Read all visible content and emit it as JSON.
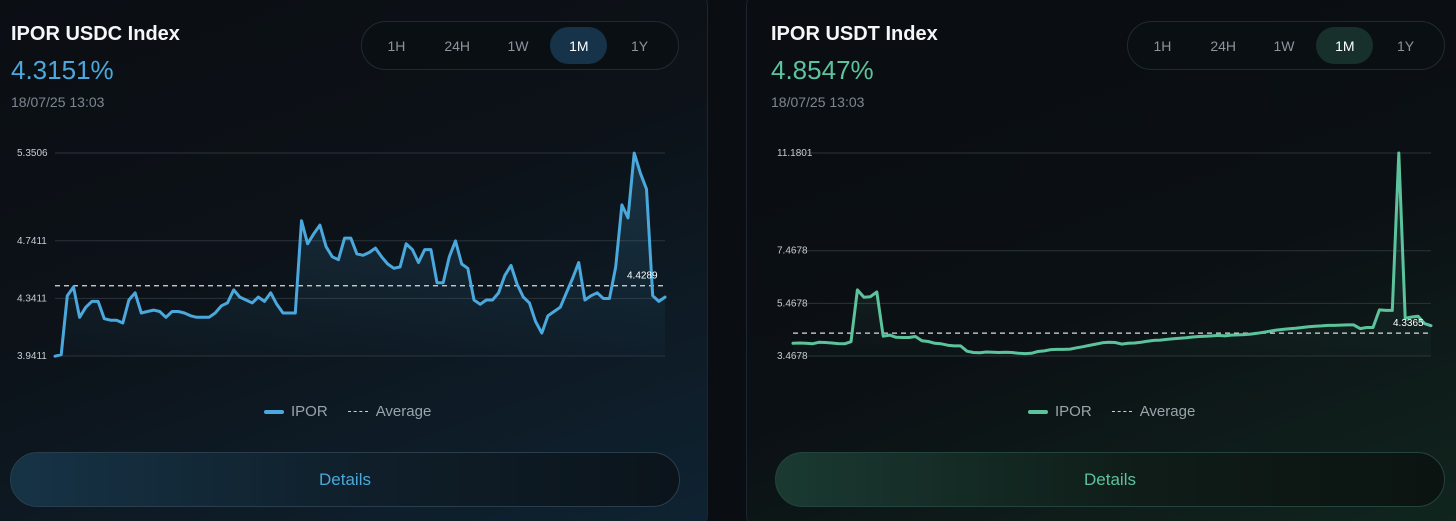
{
  "legend": {
    "series_label": "IPOR",
    "average_label": "Average"
  },
  "details_label": "Details",
  "time_ranges": [
    "1H",
    "24H",
    "1W",
    "1M",
    "1Y"
  ],
  "selected_range": "1M",
  "cards": [
    {
      "title": "IPOR USDC Index",
      "value": "4.3151%",
      "timestamp": "18/07/25 13:03",
      "accent_color": "#4aa8dc",
      "chart_data": {
        "type": "line",
        "series": [
          {
            "name": "IPOR",
            "values": [
              3.94,
              3.95,
              4.36,
              4.42,
              4.21,
              4.28,
              4.32,
              4.32,
              4.2,
              4.19,
              4.19,
              4.17,
              4.33,
              4.38,
              4.24,
              4.25,
              4.26,
              4.25,
              4.21,
              4.25,
              4.25,
              4.24,
              4.22,
              4.21,
              4.21,
              4.21,
              4.24,
              4.29,
              4.31,
              4.4,
              4.35,
              4.33,
              4.31,
              4.35,
              4.32,
              4.38,
              4.3,
              4.24,
              4.24,
              4.24,
              4.88,
              4.72,
              4.79,
              4.85,
              4.7,
              4.63,
              4.61,
              4.76,
              4.76,
              4.65,
              4.64,
              4.66,
              4.69,
              4.63,
              4.58,
              4.55,
              4.56,
              4.72,
              4.68,
              4.59,
              4.68,
              4.68,
              4.45,
              4.45,
              4.63,
              4.74,
              4.58,
              4.55,
              4.33,
              4.3,
              4.33,
              4.33,
              4.38,
              4.5,
              4.57,
              4.44,
              4.35,
              4.31,
              4.18,
              4.1,
              4.22,
              4.25,
              4.28,
              4.38,
              4.48,
              4.59,
              4.33,
              4.36,
              4.38,
              4.34,
              4.34,
              4.56,
              4.99,
              4.9,
              5.35,
              5.21,
              5.1,
              4.36,
              4.32,
              4.35
            ]
          }
        ],
        "average": 4.4289,
        "average_label": "4.4289",
        "y_ticks": [
          "5.3506",
          "4.7411",
          "4.3411",
          "3.9411"
        ],
        "ylim": [
          3.9411,
          5.3506
        ],
        "grid": true,
        "legend_position": "bottom-center"
      }
    },
    {
      "title": "IPOR USDT Index",
      "value": "4.8547%",
      "timestamp": "18/07/25 13:03",
      "accent_color": "#5cc39c",
      "chart_data": {
        "type": "line",
        "series": [
          {
            "name": "IPOR",
            "values": [
              3.95,
              3.96,
              3.95,
              3.93,
              3.99,
              3.98,
              3.96,
              3.94,
              3.93,
              4.01,
              5.98,
              5.7,
              5.72,
              5.9,
              4.22,
              4.26,
              4.18,
              4.17,
              4.17,
              4.21,
              4.05,
              4.02,
              3.95,
              3.93,
              3.88,
              3.85,
              3.85,
              3.65,
              3.6,
              3.59,
              3.62,
              3.61,
              3.6,
              3.61,
              3.6,
              3.57,
              3.56,
              3.57,
              3.64,
              3.66,
              3.71,
              3.72,
              3.72,
              3.73,
              3.78,
              3.82,
              3.87,
              3.92,
              3.97,
              3.99,
              3.98,
              3.92,
              3.95,
              3.96,
              3.99,
              4.03,
              4.06,
              4.07,
              4.1,
              4.12,
              4.14,
              4.16,
              4.19,
              4.21,
              4.22,
              4.23,
              4.25,
              4.23,
              4.26,
              4.27,
              4.28,
              4.3,
              4.33,
              4.37,
              4.41,
              4.45,
              4.48,
              4.5,
              4.52,
              4.55,
              4.58,
              4.6,
              4.61,
              4.63,
              4.63,
              4.64,
              4.65,
              4.65,
              4.51,
              4.55,
              4.55,
              5.22,
              5.2,
              5.2,
              11.18,
              4.9,
              4.95,
              4.98,
              4.7,
              4.62
            ]
          }
        ],
        "average": 4.3365,
        "average_label": "4.3365",
        "y_ticks": [
          "11.1801",
          "7.4678",
          "5.4678",
          "3.4678"
        ],
        "ylim": [
          3.4678,
          11.1801
        ],
        "grid": true,
        "legend_position": "bottom-center"
      }
    }
  ]
}
